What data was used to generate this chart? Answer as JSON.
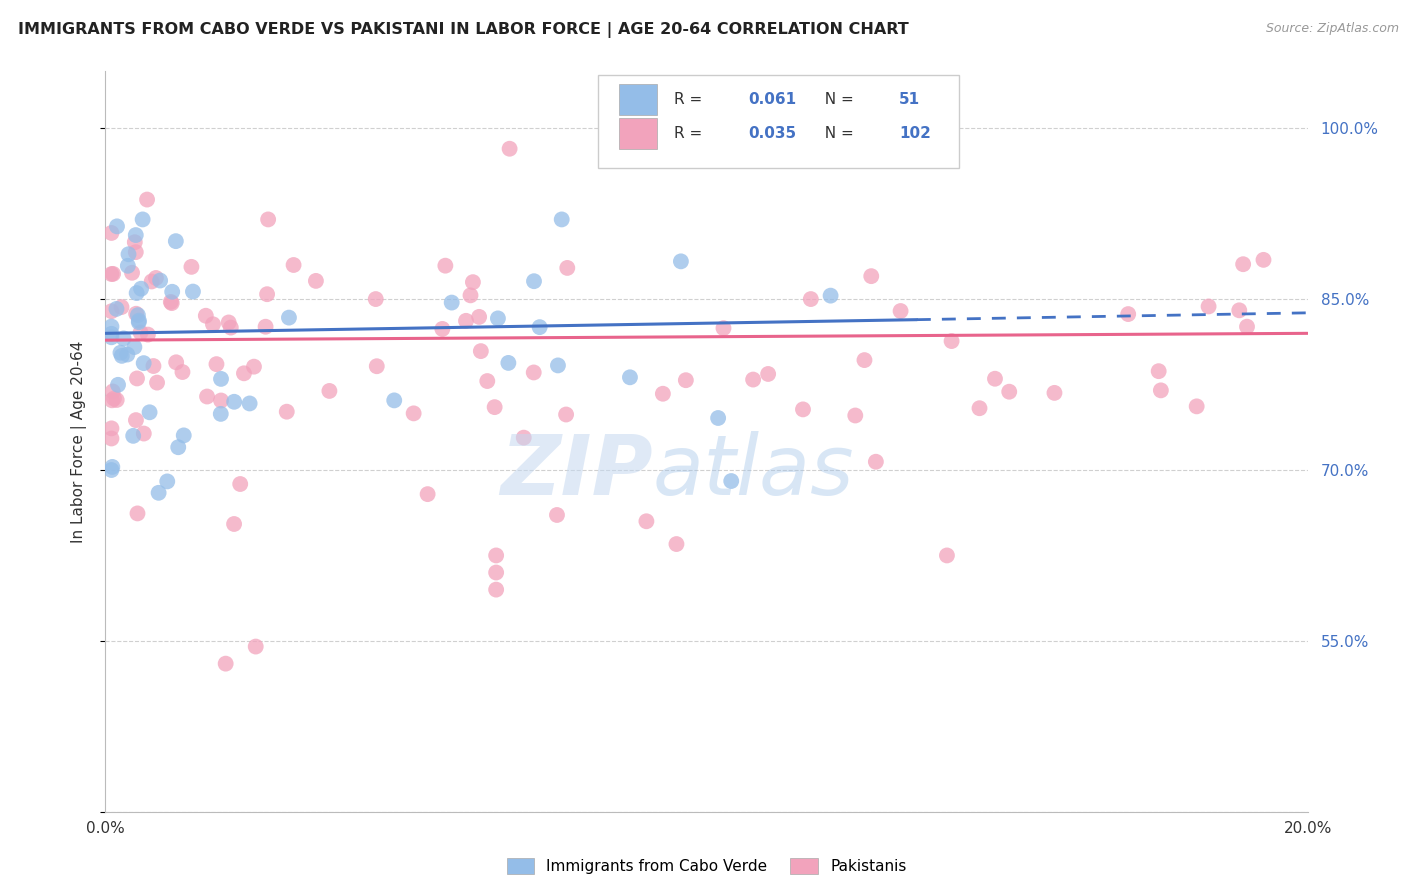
{
  "title": "IMMIGRANTS FROM CABO VERDE VS PAKISTANI IN LABOR FORCE | AGE 20-64 CORRELATION CHART",
  "source": "Source: ZipAtlas.com",
  "ylabel": "In Labor Force | Age 20-64",
  "yticks": [
    0.4,
    0.55,
    0.7,
    0.85,
    1.0
  ],
  "ytick_labels_right": [
    "",
    "55.0%",
    "70.0%",
    "85.0%",
    "100.0%"
  ],
  "xtick_labels": [
    "0.0%",
    "",
    "",
    "",
    "20.0%"
  ],
  "xmin": 0.0,
  "xmax": 0.2,
  "ymin": 0.4,
  "ymax": 1.05,
  "cabo_verde_scatter_color": "#94bde8",
  "cabo_verde_edge_color": "#94bde8",
  "pakistani_scatter_color": "#f2a3bc",
  "pakistani_edge_color": "#f2a3bc",
  "cabo_verde_line_color": "#4472c4",
  "pakistani_line_color": "#e8648c",
  "background_color": "#ffffff",
  "grid_color": "#d0d0d0",
  "right_axis_color": "#4472c4",
  "title_color": "#222222",
  "legend_color": "#4472c4",
  "cabo_verde_legend_color": "#94bde8",
  "pakistani_legend_color": "#f2a3bc",
  "watermark_zip_color": "#c5d8f0",
  "watermark_atlas_color": "#9ec2e8"
}
